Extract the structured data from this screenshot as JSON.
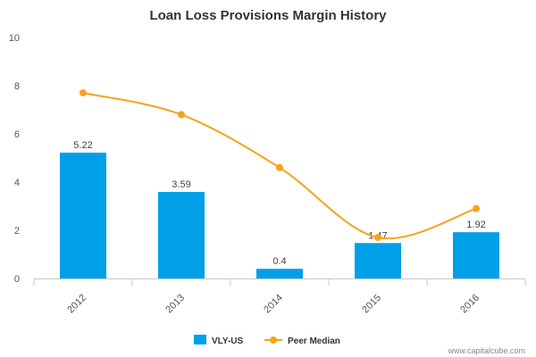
{
  "chart_data": {
    "type": "bar",
    "title": "Loan Loss Provisions Margin History",
    "categories": [
      "2012",
      "2013",
      "2014",
      "2015",
      "2016"
    ],
    "ylim": [
      0,
      10
    ],
    "yticks": [
      0,
      2,
      4,
      6,
      8,
      10
    ],
    "grid": false,
    "legend_position": "bottom-center",
    "series": [
      {
        "name": "VLY-US",
        "type": "bar",
        "color": "#00a0e9",
        "values": [
          5.22,
          3.59,
          0.4,
          1.47,
          1.92
        ],
        "data_labels": [
          "5.22",
          "3.59",
          "0.4",
          "1.47",
          "1.92"
        ]
      },
      {
        "name": "Peer Median",
        "type": "line",
        "color": "#f5a31a",
        "values": [
          7.7,
          6.8,
          4.6,
          1.7,
          2.9
        ]
      }
    ]
  },
  "credit": "www.capitalcube.com"
}
